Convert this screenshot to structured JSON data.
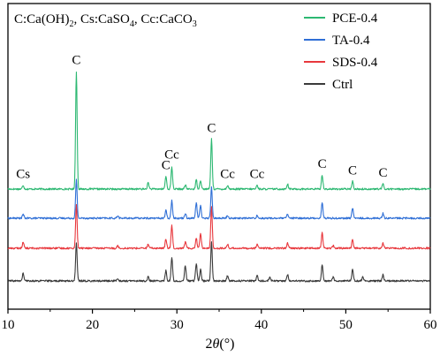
{
  "chart_data": {
    "type": "line",
    "title": "",
    "header_note": {
      "prefix": "C:Ca(OH)",
      "sub1": "2",
      "mid": ", Cs:CaSO",
      "sub2": "4",
      "suffix": ", Cc:CaCO",
      "sub3": "3"
    },
    "xlabel": {
      "prefix": "2",
      "symbol": "θ",
      "unit": "(°)"
    },
    "ylabel": "",
    "xlim": [
      10,
      60
    ],
    "xticks": [
      10,
      20,
      30,
      40,
      50,
      60
    ],
    "y_axis_ticks_shown": false,
    "grid": false,
    "legend": {
      "placement": "top-right",
      "entries": [
        {
          "name": "PCE-0.4",
          "color": "#2db872"
        },
        {
          "name": "TA-0.4",
          "color": "#2f6fd6"
        },
        {
          "name": "SDS-0.4",
          "color": "#e8383d"
        },
        {
          "name": "Ctrl",
          "color": "#3a3a3a"
        }
      ]
    },
    "series": [
      {
        "name": "PCE-0.4",
        "color": "#2db872",
        "baseline": 0.0,
        "peaks": [
          [
            11.8,
            3
          ],
          [
            18.1,
            92
          ],
          [
            26.6,
            5
          ],
          [
            28.7,
            10
          ],
          [
            29.4,
            17
          ],
          [
            31.0,
            3
          ],
          [
            32.3,
            7
          ],
          [
            32.8,
            7
          ],
          [
            34.1,
            39
          ],
          [
            36.0,
            3
          ],
          [
            39.5,
            3
          ],
          [
            43.1,
            4
          ],
          [
            47.2,
            11
          ],
          [
            50.8,
            6
          ],
          [
            54.4,
            4
          ]
        ]
      },
      {
        "name": "TA-0.4",
        "color": "#2f6fd6",
        "baseline": 0.0,
        "peaks": [
          [
            11.8,
            3
          ],
          [
            18.1,
            30
          ],
          [
            23.0,
            2
          ],
          [
            28.7,
            6
          ],
          [
            29.4,
            14
          ],
          [
            31.0,
            4
          ],
          [
            32.3,
            12
          ],
          [
            32.8,
            10
          ],
          [
            34.1,
            24
          ],
          [
            36.0,
            2
          ],
          [
            39.5,
            2
          ],
          [
            43.1,
            3
          ],
          [
            47.2,
            12
          ],
          [
            50.8,
            8
          ],
          [
            54.4,
            4
          ]
        ]
      },
      {
        "name": "SDS-0.4",
        "color": "#e8383d",
        "baseline": 0.0,
        "peaks": [
          [
            11.8,
            5
          ],
          [
            18.1,
            34
          ],
          [
            23.0,
            2
          ],
          [
            26.6,
            3
          ],
          [
            28.7,
            7
          ],
          [
            29.4,
            18
          ],
          [
            31.0,
            5
          ],
          [
            32.3,
            8
          ],
          [
            32.8,
            12
          ],
          [
            34.1,
            32
          ],
          [
            36.0,
            3
          ],
          [
            39.5,
            3
          ],
          [
            43.1,
            4
          ],
          [
            47.2,
            12
          ],
          [
            48.5,
            2
          ],
          [
            50.8,
            7
          ],
          [
            54.4,
            4
          ]
        ]
      },
      {
        "name": "Ctrl",
        "color": "#3a3a3a",
        "baseline": 0.0,
        "peaks": [
          [
            11.8,
            6
          ],
          [
            18.1,
            30
          ],
          [
            23.0,
            2
          ],
          [
            26.6,
            3
          ],
          [
            28.7,
            8
          ],
          [
            29.4,
            18
          ],
          [
            31.0,
            12
          ],
          [
            32.3,
            14
          ],
          [
            32.8,
            9
          ],
          [
            34.1,
            30
          ],
          [
            36.0,
            4
          ],
          [
            39.5,
            4
          ],
          [
            41.0,
            3
          ],
          [
            43.1,
            5
          ],
          [
            47.2,
            13
          ],
          [
            48.5,
            3
          ],
          [
            50.8,
            9
          ],
          [
            52.0,
            3
          ],
          [
            54.4,
            5
          ]
        ]
      }
    ],
    "annotations": [
      {
        "label": "Cs",
        "x": 11.8
      },
      {
        "label": "C",
        "x": 18.1
      },
      {
        "label": "C",
        "x": 28.7
      },
      {
        "label": "Cc",
        "x": 29.4
      },
      {
        "label": "C",
        "x": 34.1
      },
      {
        "label": "Cc",
        "x": 36.0
      },
      {
        "label": "Cc",
        "x": 39.5
      },
      {
        "label": "C",
        "x": 47.2
      },
      {
        "label": "C",
        "x": 50.8
      },
      {
        "label": "C",
        "x": 54.4
      }
    ]
  }
}
